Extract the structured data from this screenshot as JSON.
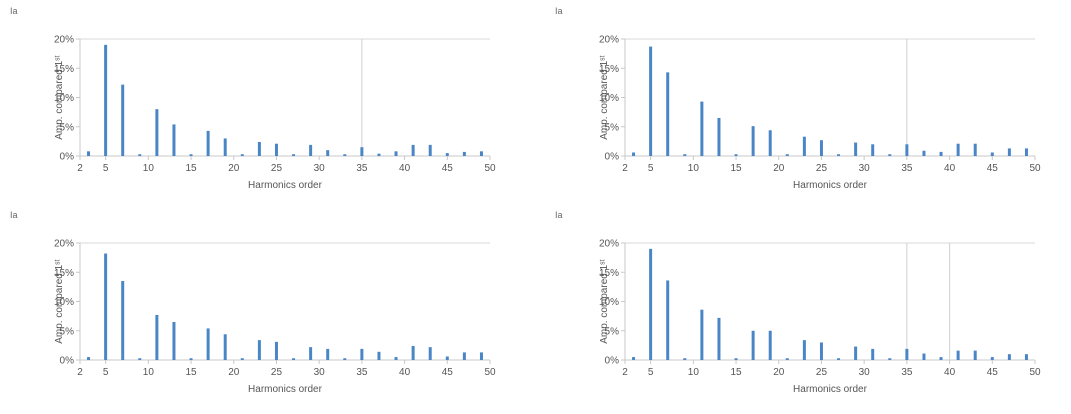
{
  "colors": {
    "bar": "#4a86c5",
    "axis": "#c8c8c8",
    "frame": "#d8d8d8",
    "text": "#555555",
    "marker": "#d0d0d0"
  },
  "chart_data": [
    {
      "type": "bar",
      "title": "Ia",
      "xlabel": "Harmonics order",
      "ylabel": "Amp. compared 1ˢᵗ",
      "xlim": [
        2,
        50
      ],
      "ylim": [
        0,
        20
      ],
      "xticks": [
        "2",
        "5",
        "10",
        "15",
        "20",
        "25",
        "30",
        "35",
        "40",
        "45",
        "50"
      ],
      "yticks": [
        "0%",
        "5%",
        "10%",
        "15%",
        "20%"
      ],
      "marker_lines": [
        35
      ],
      "x": [
        3,
        5,
        7,
        9,
        11,
        13,
        15,
        17,
        19,
        21,
        23,
        25,
        27,
        29,
        31,
        33,
        35,
        37,
        39,
        41,
        43,
        45,
        47,
        49
      ],
      "values": [
        0.8,
        19,
        12.2,
        0.3,
        8,
        5.4,
        0.3,
        4.3,
        3,
        0.3,
        2.4,
        2.1,
        0.3,
        1.9,
        1,
        0.3,
        1.5,
        0.4,
        0.8,
        1.9,
        1.9,
        0.5,
        0.7,
        0.8
      ]
    },
    {
      "type": "bar",
      "title": "Ia",
      "xlabel": "Harmonics order",
      "ylabel": "Amp. compared 1ˢᵗ",
      "xlim": [
        2,
        50
      ],
      "ylim": [
        0,
        20
      ],
      "xticks": [
        "2",
        "5",
        "10",
        "15",
        "20",
        "25",
        "30",
        "35",
        "40",
        "45",
        "50"
      ],
      "yticks": [
        "0%",
        "5%",
        "10%",
        "15%",
        "20%"
      ],
      "marker_lines": [
        35
      ],
      "x": [
        3,
        5,
        7,
        9,
        11,
        13,
        15,
        17,
        19,
        21,
        23,
        25,
        27,
        29,
        31,
        33,
        35,
        37,
        39,
        41,
        43,
        45,
        47,
        49
      ],
      "values": [
        0.6,
        18.7,
        14.3,
        0.3,
        9.3,
        6.5,
        0.3,
        5.1,
        4.4,
        0.3,
        3.3,
        2.7,
        0.3,
        2.3,
        2,
        0.3,
        2,
        0.9,
        0.7,
        2.1,
        2.1,
        0.6,
        1.3,
        1.3
      ]
    },
    {
      "type": "bar",
      "title": "Ia",
      "xlabel": "Harmonics order",
      "ylabel": "Amp. compared 1ˢᵗ",
      "xlim": [
        2,
        50
      ],
      "ylim": [
        0,
        20
      ],
      "xticks": [
        "2",
        "5",
        "10",
        "15",
        "20",
        "25",
        "30",
        "35",
        "40",
        "45",
        "50"
      ],
      "yticks": [
        "0%",
        "5%",
        "10%",
        "15%",
        "20%"
      ],
      "marker_lines": [],
      "x": [
        3,
        5,
        7,
        9,
        11,
        13,
        15,
        17,
        19,
        21,
        23,
        25,
        27,
        29,
        31,
        33,
        35,
        37,
        39,
        41,
        43,
        45,
        47,
        49
      ],
      "values": [
        0.5,
        18.2,
        13.5,
        0.3,
        7.7,
        6.5,
        0.3,
        5.4,
        4.4,
        0.3,
        3.4,
        3.1,
        0.3,
        2.2,
        1.9,
        0.3,
        1.9,
        1.4,
        0.5,
        2.4,
        2.2,
        0.6,
        1.3,
        1.3
      ]
    },
    {
      "type": "bar",
      "title": "Ia",
      "xlabel": "Harmonics order",
      "ylabel": "Amp. compared 1ˢᵗ",
      "xlim": [
        2,
        50
      ],
      "ylim": [
        0,
        20
      ],
      "xticks": [
        "2",
        "5",
        "10",
        "15",
        "20",
        "25",
        "30",
        "35",
        "40",
        "45",
        "50"
      ],
      "yticks": [
        "0%",
        "5%",
        "10%",
        "15%",
        "20%"
      ],
      "marker_lines": [
        35,
        40
      ],
      "x": [
        3,
        5,
        7,
        9,
        11,
        13,
        15,
        17,
        19,
        21,
        23,
        25,
        27,
        29,
        31,
        33,
        35,
        37,
        39,
        41,
        43,
        45,
        47,
        49
      ],
      "values": [
        0.5,
        19,
        13.6,
        0.3,
        8.6,
        7.2,
        0.3,
        5,
        5,
        0.3,
        3.4,
        3,
        0.3,
        2.3,
        1.9,
        0.3,
        1.9,
        1.1,
        0.5,
        1.6,
        1.6,
        0.5,
        1,
        1
      ]
    }
  ]
}
